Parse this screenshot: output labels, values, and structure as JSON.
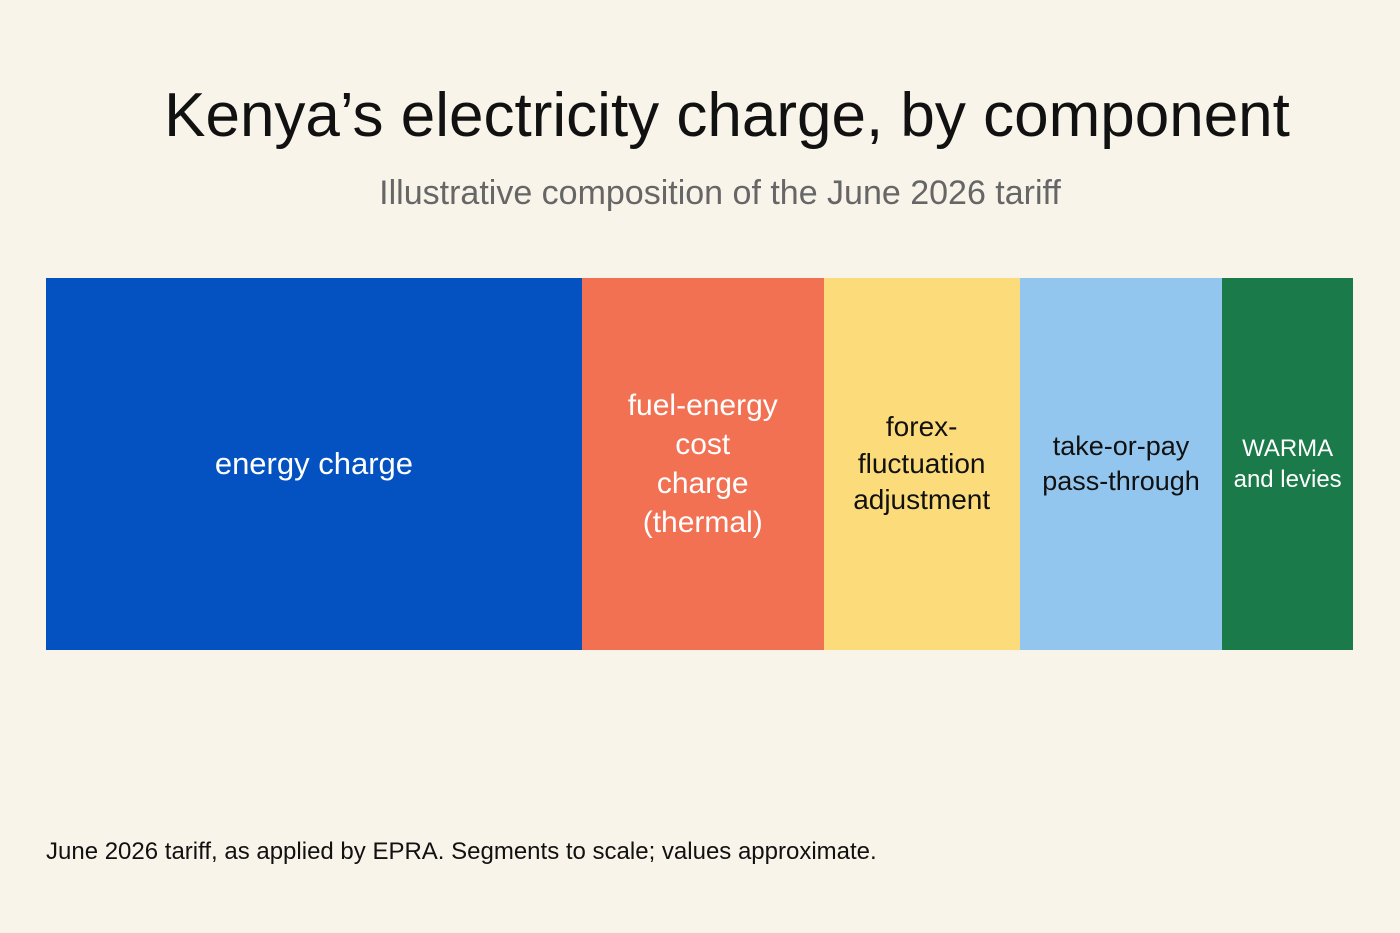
{
  "chart_data": {
    "type": "bar",
    "title": "Kenya’s electricity charge, by component",
    "subtitle": "Illustrative composition of the June 2026 tariff",
    "categories": [
      "energy charge",
      "fuel-energy cost charge (thermal)",
      "forex-fluctuation adjustment",
      "take-or-pay pass-through",
      "WARMA and levies"
    ],
    "values": [
      41,
      18.5,
      15,
      15.5,
      10
    ],
    "colors": [
      "#0452c2",
      "#f17152",
      "#fcdc7a",
      "#93c6ee",
      "#1b7a4a"
    ],
    "note": "June 2026 tariff, as applied by EPRA. Segments to scale; values approximate."
  }
}
